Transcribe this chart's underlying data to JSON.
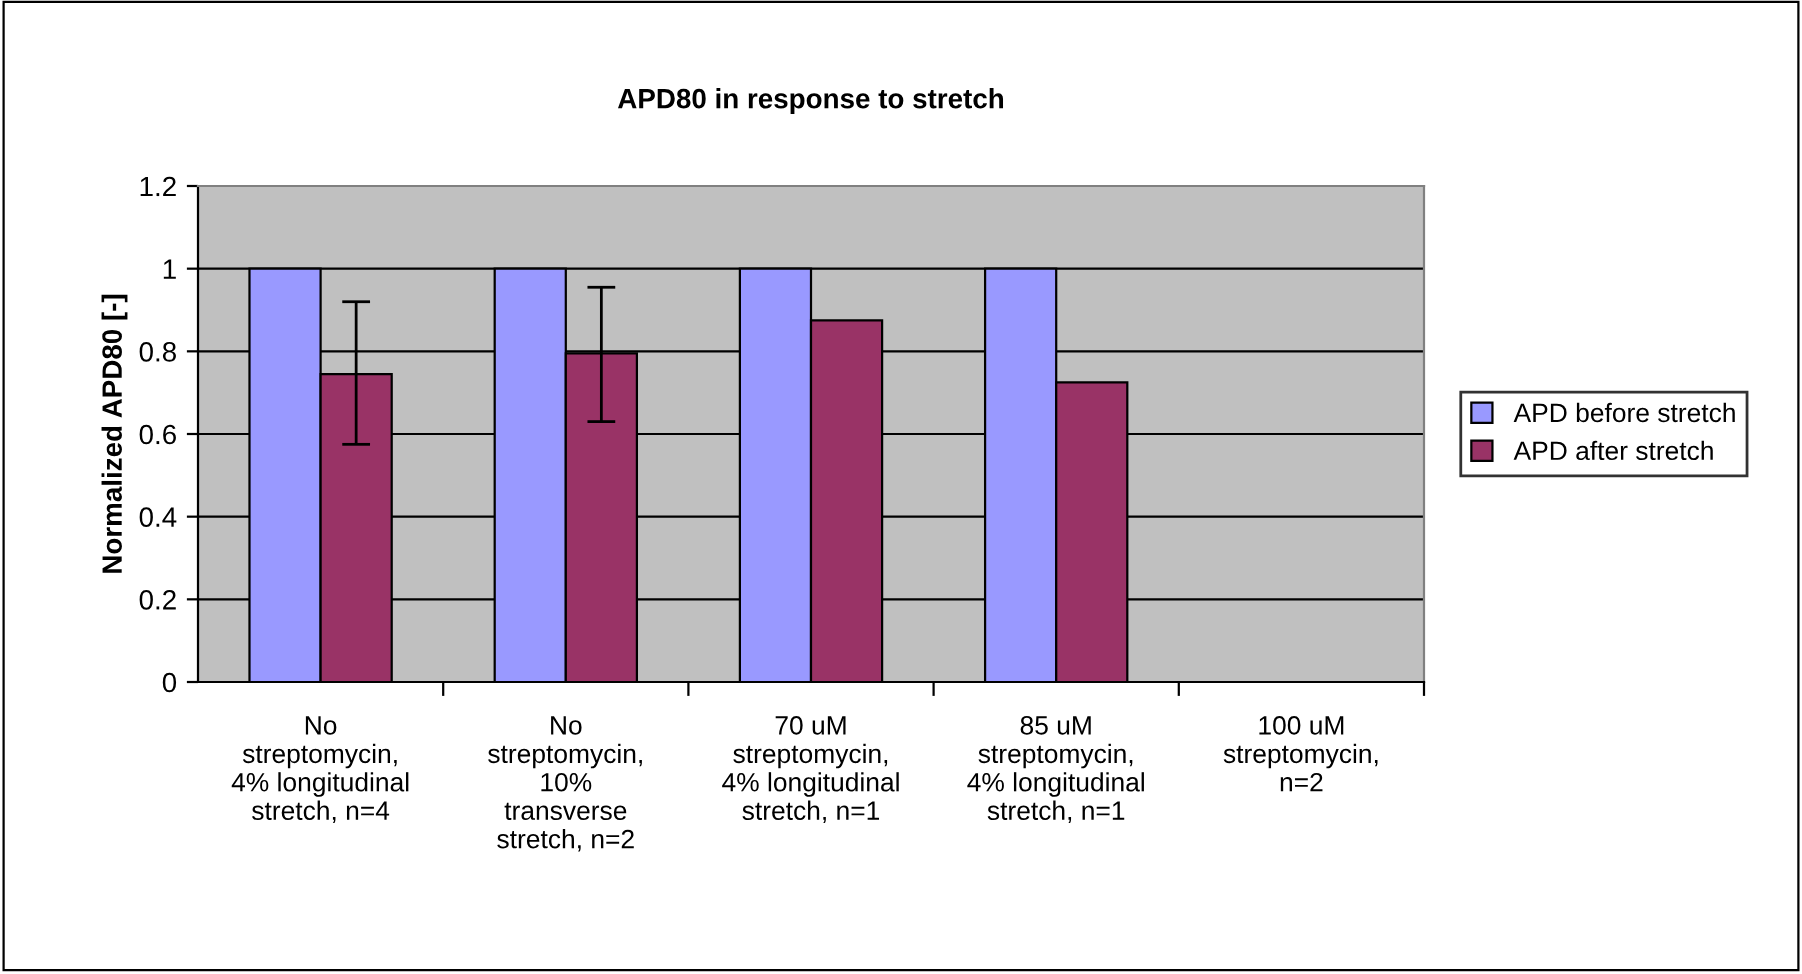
{
  "chart_data": {
    "type": "bar",
    "title": "APD80 in response to stretch",
    "ylabel": "Normalized APD80 [-]",
    "categories": [
      "No\nstreptomycin,\n4% longitudinal\nstretch, n=4",
      "No\nstreptomycin,\n10%\ntransverse\nstretch, n=2",
      "70 uM\nstreptomycin,\n4% longitudinal\nstretch, n=1",
      "85 uM\nstreptomycin,\n4% longitudinal\nstretch, n=1",
      "100 uM\nstreptomycin,\nn=2"
    ],
    "series": [
      {
        "name": "APD before stretch",
        "color": "#9999ff",
        "values": [
          1,
          1,
          1,
          1,
          null
        ]
      },
      {
        "name": "APD after stretch",
        "color": "#993366",
        "values": [
          0.745,
          0.795,
          0.875,
          0.725,
          null
        ],
        "errors": [
          [
            0.575,
            0.92
          ],
          [
            0.63,
            0.955
          ],
          null,
          null,
          null
        ]
      }
    ],
    "ylim": [
      0,
      1.2
    ],
    "yticks": [
      0,
      0.2,
      0.4,
      0.6,
      0.8,
      1,
      1.2
    ],
    "grid": "y",
    "legend": "right"
  }
}
